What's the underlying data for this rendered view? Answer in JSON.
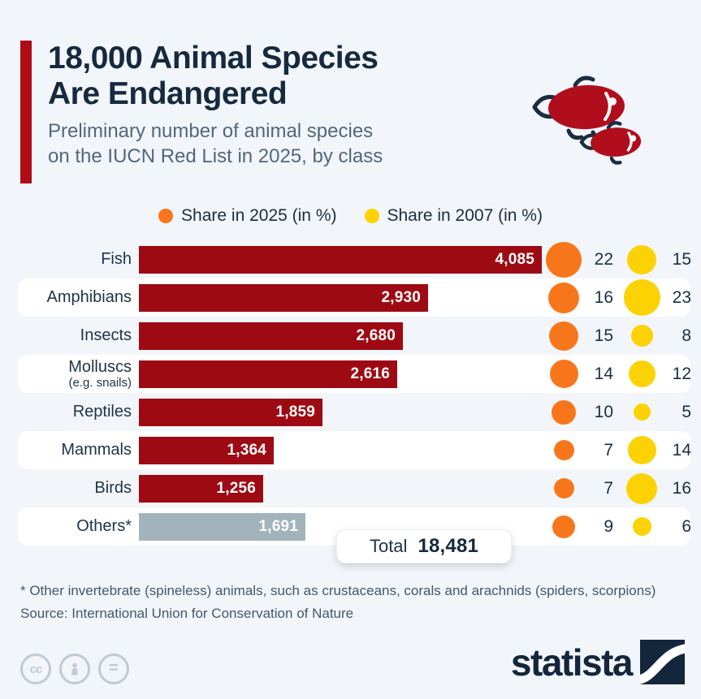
{
  "header": {
    "title_line1": "18,000 Animal Species",
    "title_line2": "Are Endangered",
    "subtitle_line1": "Preliminary number of animal species",
    "subtitle_line2": "on the IUCN Red List in 2025, by class"
  },
  "legend": [
    {
      "label": "Share in 2025 (in %)"
    },
    {
      "label": "Share in 2007 (in %)"
    }
  ],
  "colors": {
    "background": "#f2f5f9",
    "accent_red": "#ae0d18",
    "bar_red": "#9e0a13",
    "bar_gray": "#a3b3bb",
    "share_2025": "#f8761b",
    "share_2007": "#fcd205",
    "navy_text": "#16293e",
    "muted_text": "#52677e",
    "cc_gray": "#c0cad4"
  },
  "chart_data": {
    "type": "bar",
    "title": "18,000 Animal Species Are Endangered",
    "subtitle": "Preliminary number of animal species on the IUCN Red List in 2025, by class",
    "categories": [
      "Fish",
      "Amphibians",
      "Insects",
      "Molluscs (e.g. snails)",
      "Reptiles",
      "Mammals",
      "Birds",
      "Others*"
    ],
    "series": [
      {
        "name": "Species on IUCN Red List 2025",
        "values": [
          4085,
          2930,
          2680,
          2616,
          1859,
          1364,
          1256,
          1691
        ]
      },
      {
        "name": "Share in 2025 (in %)",
        "values": [
          22,
          16,
          15,
          14,
          10,
          7,
          7,
          9
        ]
      },
      {
        "name": "Share in 2007 (in %)",
        "values": [
          15,
          23,
          8,
          12,
          5,
          14,
          16,
          6
        ]
      }
    ],
    "total": 18481,
    "bar_scale_max": 4085,
    "legend_position": "top-center",
    "grid": false
  },
  "rows": [
    {
      "id": "fish",
      "label": "Fish",
      "sublabel": "",
      "value": "4,085",
      "value_num": 4085,
      "share_2025": 22,
      "share_2007": 15,
      "bar_color": "#9e0a13"
    },
    {
      "id": "amphibians",
      "label": "Amphibians",
      "sublabel": "",
      "value": "2,930",
      "value_num": 2930,
      "share_2025": 16,
      "share_2007": 23,
      "bar_color": "#9e0a13"
    },
    {
      "id": "insects",
      "label": "Insects",
      "sublabel": "",
      "value": "2,680",
      "value_num": 2680,
      "share_2025": 15,
      "share_2007": 8,
      "bar_color": "#9e0a13"
    },
    {
      "id": "molluscs",
      "label": "Molluscs",
      "sublabel": "(e.g. snails)",
      "value": "2,616",
      "value_num": 2616,
      "share_2025": 14,
      "share_2007": 12,
      "bar_color": "#9e0a13"
    },
    {
      "id": "reptiles",
      "label": "Reptiles",
      "sublabel": "",
      "value": "1,859",
      "value_num": 1859,
      "share_2025": 10,
      "share_2007": 5,
      "bar_color": "#9e0a13"
    },
    {
      "id": "mammals",
      "label": "Mammals",
      "sublabel": "",
      "value": "1,364",
      "value_num": 1364,
      "share_2025": 7,
      "share_2007": 14,
      "bar_color": "#9e0a13"
    },
    {
      "id": "birds",
      "label": "Birds",
      "sublabel": "",
      "value": "1,256",
      "value_num": 1256,
      "share_2025": 7,
      "share_2007": 16,
      "bar_color": "#9e0a13"
    },
    {
      "id": "others",
      "label": "Others*",
      "sublabel": "",
      "value": "1,691",
      "value_num": 1691,
      "share_2025": 9,
      "share_2007": 6,
      "bar_color": "#a3b3bb"
    }
  ],
  "total": {
    "label": "Total",
    "value": "18,481"
  },
  "footnote": "* Other invertebrate (spineless) animals, such as crustaceans, corals and arachnids (spiders, scorpions)",
  "source": "Source: International Union for Conservation of Nature",
  "branding": {
    "logo_text": "statista"
  }
}
